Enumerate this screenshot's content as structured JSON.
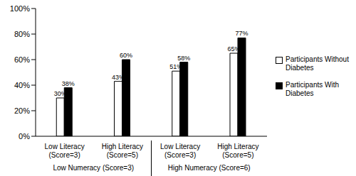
{
  "chart_data": {
    "type": "bar",
    "categories": [
      "Low Literacy (Score=3)",
      "High Literacy (Score=5)",
      "Low Literacy (Score=3)",
      "High Literacy (Score=5)"
    ],
    "group_labels": [
      "Low Numeracy (Score=3)",
      "High Numeracy (Score=6)"
    ],
    "series": [
      {
        "name": "Participants Without Diabetes",
        "color": "#ffffff",
        "values": [
          30,
          43,
          51,
          65
        ],
        "value_labels": [
          "30%",
          "43%",
          "51%",
          "65%"
        ]
      },
      {
        "name": "Participants With Diabetes",
        "color": "#000000",
        "values": [
          38,
          60,
          58,
          77
        ],
        "value_labels": [
          "38%",
          "60%",
          "58%",
          "77%"
        ]
      }
    ],
    "ylim": [
      0,
      100
    ],
    "yticks": [
      {
        "value": 0,
        "label": "0%"
      },
      {
        "value": 20,
        "label": "20%"
      },
      {
        "value": 40,
        "label": "40%"
      },
      {
        "value": 60,
        "label": "60%"
      },
      {
        "value": 80,
        "label": "80%"
      },
      {
        "value": 100,
        "label": "100%"
      }
    ],
    "grid": false,
    "data_labels": true,
    "legend": "right"
  }
}
